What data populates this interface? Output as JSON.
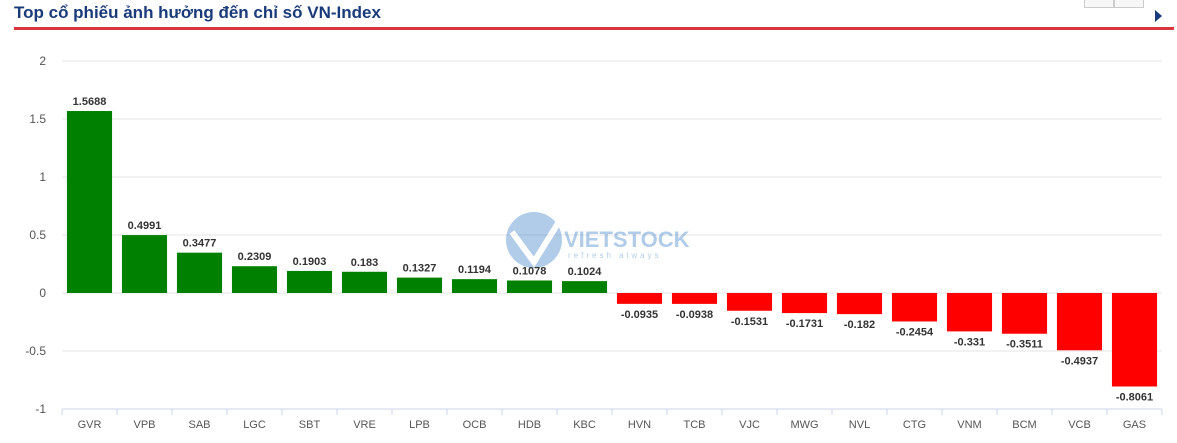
{
  "header": {
    "title": "Top cổ phiếu ảnh hưởng đến chỉ số VN-Index"
  },
  "watermark": {
    "brand": "VIETSTOCK",
    "tagline": "refresh always"
  },
  "colors": {
    "positive": "#008000",
    "negative": "#ff0000",
    "title": "#1a3b7a",
    "rule": "#d9373d",
    "grid": "#e6e6e6",
    "axis_text": "#555555"
  },
  "chart_data": {
    "type": "bar",
    "title": "Top cổ phiếu ảnh hưởng đến chỉ số VN-Index",
    "xlabel": "",
    "ylabel": "",
    "ylim": [
      -1,
      2
    ],
    "yticks": [
      "2",
      "1.5",
      "1",
      "0.5",
      "0",
      "-0.5",
      "-1"
    ],
    "grid": true,
    "legend": "none",
    "categories": [
      "GVR",
      "VPB",
      "SAB",
      "LGC",
      "SBT",
      "VRE",
      "LPB",
      "OCB",
      "HDB",
      "KBC",
      "HVN",
      "TCB",
      "VJC",
      "MWG",
      "NVL",
      "CTG",
      "VNM",
      "BCM",
      "VCB",
      "GAS"
    ],
    "values": [
      1.5688,
      0.4991,
      0.3477,
      0.2309,
      0.1903,
      0.183,
      0.1327,
      0.1194,
      0.1078,
      0.1024,
      -0.0935,
      -0.0938,
      -0.1531,
      -0.1731,
      -0.182,
      -0.2454,
      -0.331,
      -0.3511,
      -0.4937,
      -0.8061
    ],
    "labels": [
      "1.5688",
      "0.4991",
      "0.3477",
      "0.2309",
      "0.1903",
      "0.183",
      "0.1327",
      "0.1194",
      "0.1078",
      "0.1024",
      "-0.0935",
      "-0.0938",
      "-0.1531",
      "-0.1731",
      "-0.182",
      "-0.2454",
      "-0.331",
      "-0.3511",
      "-0.4937",
      "-0.8061"
    ]
  }
}
